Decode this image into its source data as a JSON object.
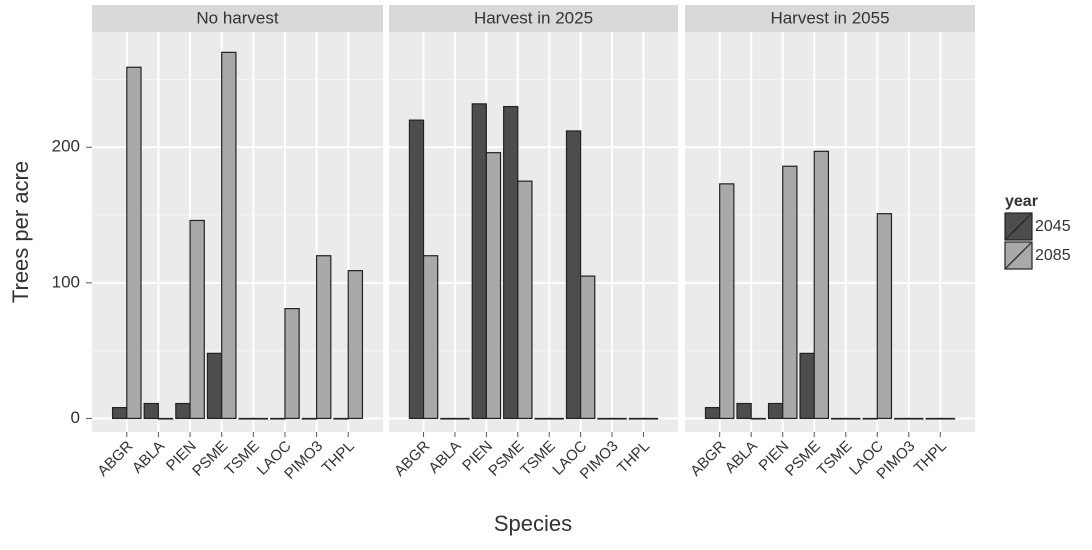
{
  "chart_data": {
    "type": "bar",
    "facets": [
      "No harvest",
      "Harvest in 2025",
      "Harvest in 2055"
    ],
    "categories": [
      "ABGR",
      "ABLA",
      "PIEN",
      "PSME",
      "TSME",
      "LAOC",
      "PIMO3",
      "THPL"
    ],
    "series": [
      {
        "name": "2045",
        "color": "#4d4d4d",
        "values": [
          [
            8,
            11,
            11,
            48,
            0,
            0,
            0,
            0
          ],
          [
            220,
            0,
            232,
            230,
            0,
            212,
            0,
            0
          ],
          [
            8,
            11,
            11,
            48,
            0,
            0,
            0,
            0
          ]
        ]
      },
      {
        "name": "2085",
        "color": "#a9a9a9",
        "values": [
          [
            259,
            0,
            146,
            270,
            0,
            81,
            120,
            109
          ],
          [
            120,
            0,
            196,
            175,
            0,
            105,
            0,
            0
          ],
          [
            173,
            0,
            186,
            197,
            0,
            151,
            0,
            0
          ]
        ]
      }
    ],
    "ylim": [
      -10,
      285
    ],
    "yticks": [
      0,
      100,
      200
    ],
    "grid": true,
    "ylabel": "Trees per acre",
    "xlabel": "Species",
    "legend_title": "year"
  }
}
